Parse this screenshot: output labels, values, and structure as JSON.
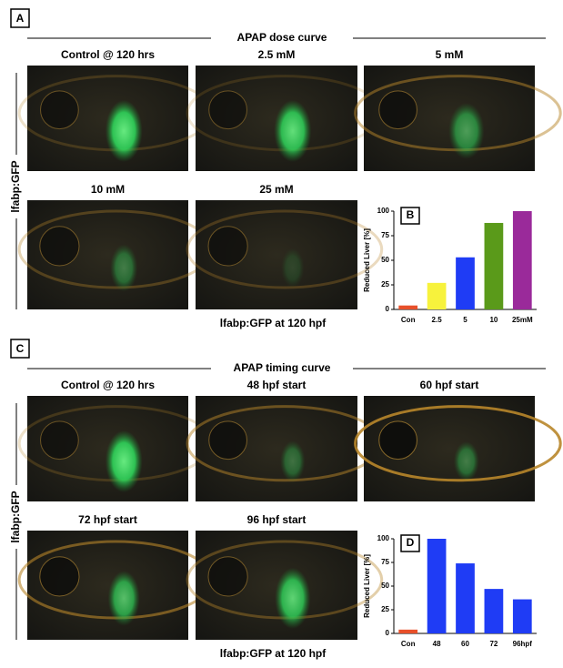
{
  "panels": [
    {
      "label": "A",
      "title": "APAP dose curve",
      "images": [
        "Control @ 120 hrs",
        "2.5 mM",
        "5 mM",
        "10 mM",
        "25 mM"
      ],
      "side_label": "lfabp:GFP",
      "caption": "lfabp:GFP at 120 hpf"
    },
    {
      "label": "C",
      "title": "APAP timing curve",
      "images": [
        "Control @ 120 hrs",
        "48 hpf start",
        "60 hpf start",
        "72 hpf start",
        "96 hpf start"
      ],
      "side_label": "lfabp:GFP",
      "caption": "lfabp:GFP at 120 hpf"
    }
  ],
  "chart_data": [
    {
      "type": "bar",
      "label": "B",
      "y_label": "Reduced Liver [%]",
      "categories": [
        "Con",
        "2.5",
        "5",
        "10",
        "25mM"
      ],
      "values": [
        4,
        27,
        53,
        88,
        100
      ],
      "colors": [
        "#e8502a",
        "#f7f23c",
        "#1f3cf5",
        "#5a9a1a",
        "#9a2a9a"
      ],
      "ylim": [
        0,
        100
      ],
      "yticks": [
        0,
        25,
        50,
        75,
        100
      ]
    },
    {
      "type": "bar",
      "label": "D",
      "y_label": "Reduced Liver [%]",
      "categories": [
        "Con",
        "48",
        "60",
        "72",
        "96hpf"
      ],
      "values": [
        4,
        100,
        74,
        47,
        36
      ],
      "colors": [
        "#e8502a",
        "#1f3cf5",
        "#1f3cf5",
        "#1f3cf5",
        "#1f3cf5"
      ],
      "ylim": [
        0,
        100
      ],
      "yticks": [
        0,
        25,
        50,
        75,
        100
      ]
    }
  ]
}
